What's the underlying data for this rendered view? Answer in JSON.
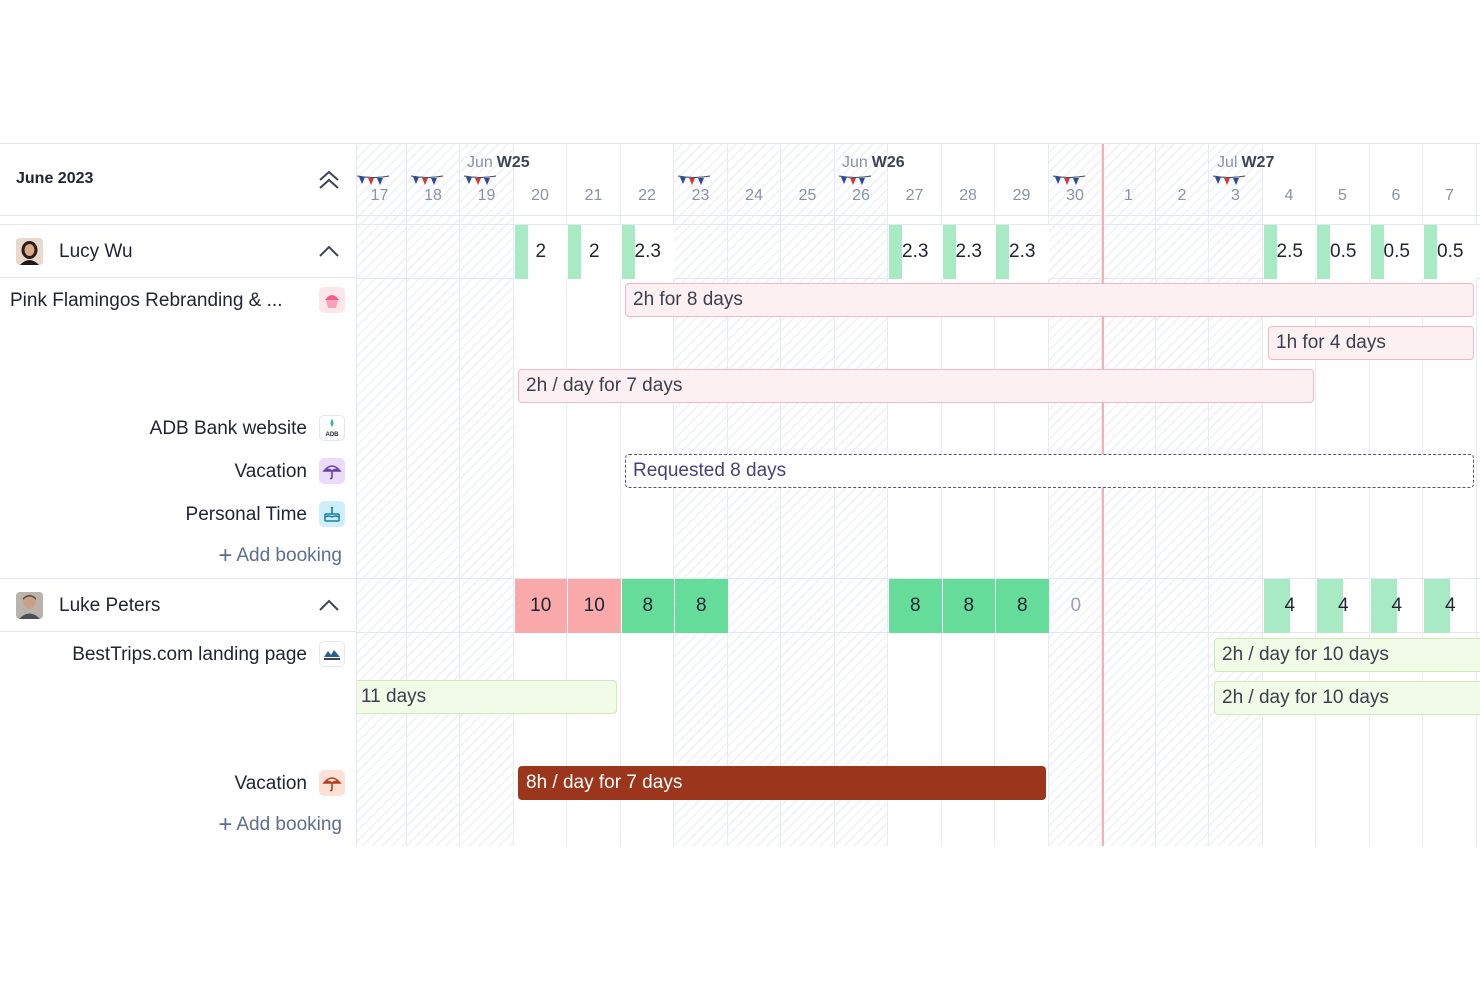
{
  "month_title": "June 2023",
  "weeks": [
    {
      "month": "Jun",
      "week": "W25"
    },
    {
      "month": "Jun",
      "week": "W26"
    },
    {
      "month": "Jul",
      "week": "W27"
    }
  ],
  "days": [
    "17",
    "18",
    "19",
    "20",
    "21",
    "22",
    "23",
    "24",
    "25",
    "26",
    "27",
    "28",
    "29",
    "30",
    "1",
    "2",
    "3",
    "4",
    "5",
    "6",
    "7"
  ],
  "holiday_days": [
    "17",
    "18",
    "19",
    "23",
    "26",
    "30",
    "3"
  ],
  "people": [
    {
      "name": "Lucy Wu",
      "capacity": [
        "",
        "",
        "",
        "2",
        "2",
        "2.3",
        "",
        "",
        "",
        "",
        "2.3",
        "2.3",
        "2.3",
        "",
        "",
        "",
        "",
        "2.5",
        "0.5",
        "0.5",
        "0.5"
      ],
      "projects": [
        {
          "label": "Pink Flamingos Rebranding & ...",
          "icon": "cupcake-icon"
        },
        {
          "label": "ADB Bank website",
          "icon": "adb-bank-logo"
        },
        {
          "label": "Vacation",
          "icon": "umbrella-icon"
        },
        {
          "label": "Personal Time",
          "icon": "cake-icon"
        }
      ],
      "bookings": [
        {
          "text": "2h for 8 days"
        },
        {
          "text": "1h for 4 days"
        },
        {
          "text": "2h / day for 7 days"
        },
        {
          "text": "Requested 8 days"
        }
      ],
      "add_booking": "Add booking"
    },
    {
      "name": "Luke Peters",
      "capacity": [
        "",
        "",
        "",
        "10",
        "10",
        "8",
        "8",
        "",
        "",
        "",
        "8",
        "8",
        "8",
        "0",
        "",
        "",
        "",
        "4",
        "4",
        "4",
        "4"
      ],
      "projects": [
        {
          "label": "BestTrips.com landing page",
          "icon": "besttrips-logo"
        },
        {
          "label": "Vacation",
          "icon": "umbrella-icon"
        }
      ],
      "bookings": [
        {
          "text": "2h / day for 10 days"
        },
        {
          "text": "11 days"
        },
        {
          "text": "2h / day for 10 days"
        },
        {
          "text": "8h / day for 7 days"
        }
      ],
      "add_booking": "Add booking"
    }
  ],
  "adb_logo_text": "ADB",
  "colors": {
    "overload": "#f9a9a9",
    "full": "#66dc9b",
    "partial": "#a8eac3",
    "booking_pink": "#fdf0f3",
    "booking_green": "#f2fbe8",
    "vacation_brown": "#9b351b",
    "today_line": "#f3b2b2"
  }
}
